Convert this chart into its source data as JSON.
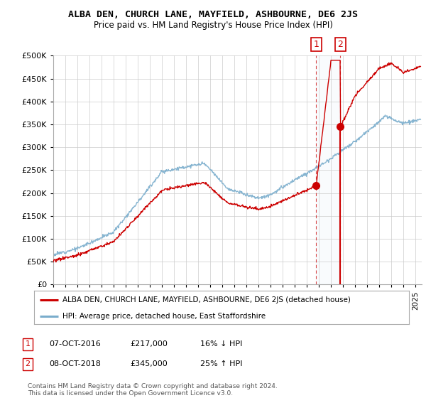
{
  "title": "ALBA DEN, CHURCH LANE, MAYFIELD, ASHBOURNE, DE6 2JS",
  "subtitle": "Price paid vs. HM Land Registry's House Price Index (HPI)",
  "ylim": [
    0,
    500000
  ],
  "yticks": [
    0,
    50000,
    100000,
    150000,
    200000,
    250000,
    300000,
    350000,
    400000,
    450000,
    500000
  ],
  "xlim_start": 1995.0,
  "xlim_end": 2025.5,
  "red_color": "#cc0000",
  "blue_color": "#7aadcc",
  "transaction1": {
    "date_x": 2016.77,
    "price": 217000,
    "label": "1",
    "pct": "16% ↓ HPI",
    "date_str": "07-OCT-2016"
  },
  "transaction2": {
    "date_x": 2018.77,
    "price": 345000,
    "label": "2",
    "pct": "25% ↑ HPI",
    "date_str": "08-OCT-2018"
  },
  "legend_label_red": "ALBA DEN, CHURCH LANE, MAYFIELD, ASHBOURNE, DE6 2JS (detached house)",
  "legend_label_blue": "HPI: Average price, detached house, East Staffordshire",
  "footnote": "Contains HM Land Registry data © Crown copyright and database right 2024.\nThis data is licensed under the Open Government Licence v3.0.",
  "background_color": "#ffffff",
  "grid_color": "#cccccc"
}
